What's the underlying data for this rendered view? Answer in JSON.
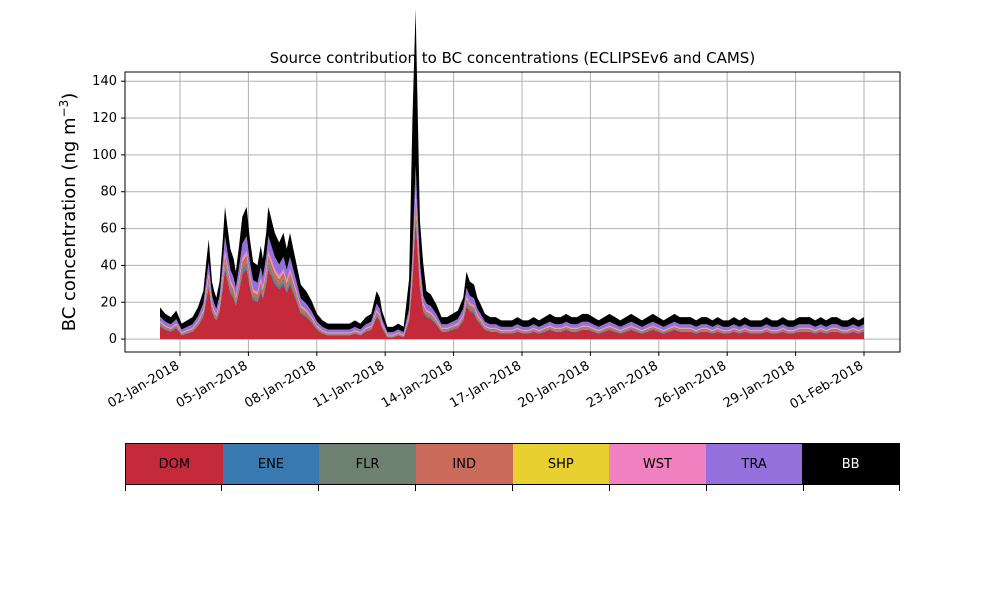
{
  "chart_data": {
    "type": "area",
    "title": "Source contribution to BC concentrations (ECLIPSEv6 and CAMS)",
    "ylabel": "BC concentration (ng m",
    "ylabel_exp": "−3",
    "ylabel_close": ")",
    "ylim": [
      -7,
      145
    ],
    "yticks": [
      0,
      20,
      40,
      60,
      80,
      100,
      120,
      140
    ],
    "xticks": [
      "02-Jan-2018",
      "05-Jan-2018",
      "08-Jan-2018",
      "11-Jan-2018",
      "14-Jan-2018",
      "17-Jan-2018",
      "20-Jan-2018",
      "23-Jan-2018",
      "26-Jan-2018",
      "29-Jan-2018",
      "01-Feb-2018"
    ],
    "grid": true,
    "legend_placement": "colorbar-below",
    "colors": {
      "DOM": "#c42a3a",
      "ENE": "#3a78b0",
      "FLR": "#6e8070",
      "IND": "#c96a5a",
      "SHP": "#e8d030",
      "WST": "#f080c0",
      "TRA": "#9370db",
      "BB": "#000000"
    },
    "categories": [
      "DOM",
      "ENE",
      "FLR",
      "IND",
      "SHP",
      "WST",
      "TRA",
      "BB"
    ],
    "x_start": "2018-01-01 12:00",
    "x_end": "2018-02-01 00:00",
    "series_totals": {
      "DOM": [
        [
          0,
          7
        ],
        [
          0.5,
          5
        ],
        [
          1,
          4
        ],
        [
          1.5,
          6
        ],
        [
          2,
          2
        ],
        [
          2.5,
          3
        ],
        [
          3,
          4
        ],
        [
          3.5,
          7
        ],
        [
          4,
          12
        ],
        [
          4.3,
          22
        ],
        [
          4.5,
          28
        ],
        [
          4.8,
          15
        ],
        [
          5,
          12
        ],
        [
          5.2,
          10
        ],
        [
          5.5,
          15
        ],
        [
          5.8,
          28
        ],
        [
          6,
          38
        ],
        [
          6.3,
          30
        ],
        [
          6.5,
          25
        ],
        [
          6.8,
          22
        ],
        [
          7,
          18
        ],
        [
          7.3,
          26
        ],
        [
          7.6,
          35
        ],
        [
          8,
          38
        ],
        [
          8.3,
          28
        ],
        [
          8.6,
          21
        ],
        [
          9,
          20
        ],
        [
          9.3,
          26
        ],
        [
          9.5,
          22
        ],
        [
          9.8,
          30
        ],
        [
          10,
          38
        ],
        [
          10.3,
          34
        ],
        [
          10.6,
          30
        ],
        [
          11,
          27
        ],
        [
          11.4,
          30
        ],
        [
          11.7,
          25
        ],
        [
          12,
          30
        ],
        [
          12.5,
          22
        ],
        [
          13,
          14
        ],
        [
          13.5,
          12
        ],
        [
          14,
          9
        ],
        [
          14.5,
          5
        ],
        [
          15,
          3
        ],
        [
          15.5,
          2
        ],
        [
          16,
          2
        ],
        [
          16.5,
          2
        ],
        [
          17,
          2
        ],
        [
          17.5,
          2
        ],
        [
          18,
          3
        ],
        [
          18.5,
          2
        ],
        [
          19,
          4
        ],
        [
          19.5,
          5
        ],
        [
          20,
          12
        ],
        [
          20.3,
          10
        ],
        [
          20.5,
          6
        ],
        [
          21,
          1
        ],
        [
          21.5,
          1
        ],
        [
          22,
          2
        ],
        [
          22.5,
          1
        ],
        [
          23,
          10
        ],
        [
          23.3,
          30
        ],
        [
          23.6,
          65
        ],
        [
          24,
          28
        ],
        [
          24.3,
          15
        ],
        [
          24.6,
          12
        ],
        [
          25,
          11
        ],
        [
          25.5,
          8
        ],
        [
          26,
          4
        ],
        [
          26.5,
          4
        ],
        [
          27,
          5
        ],
        [
          27.5,
          6
        ],
        [
          28,
          10
        ],
        [
          28.3,
          18
        ],
        [
          28.6,
          15
        ],
        [
          29,
          14
        ],
        [
          29.3,
          10
        ],
        [
          29.6,
          8
        ],
        [
          30,
          5
        ],
        [
          30.5,
          4
        ],
        [
          31,
          4
        ],
        [
          31.5,
          3
        ],
        [
          32,
          3
        ],
        [
          32.5,
          3
        ],
        [
          33,
          4
        ],
        [
          33.5,
          3
        ],
        [
          34,
          3
        ],
        [
          34.5,
          4
        ],
        [
          35,
          3
        ],
        [
          35.5,
          4
        ],
        [
          36,
          5
        ],
        [
          36.5,
          4
        ],
        [
          37,
          4
        ],
        [
          37.5,
          5
        ],
        [
          38,
          4
        ],
        [
          38.5,
          4
        ],
        [
          39,
          5
        ],
        [
          39.5,
          5
        ],
        [
          40,
          4
        ],
        [
          40.5,
          3
        ],
        [
          41,
          4
        ],
        [
          41.5,
          5
        ],
        [
          42,
          4
        ],
        [
          42.5,
          3
        ],
        [
          43,
          4
        ],
        [
          43.5,
          5
        ],
        [
          44,
          4
        ],
        [
          44.5,
          3
        ],
        [
          45,
          4
        ],
        [
          45.5,
          5
        ],
        [
          46,
          4
        ],
        [
          46.5,
          3
        ],
        [
          47,
          4
        ],
        [
          47.5,
          5
        ],
        [
          48,
          4
        ],
        [
          48.5,
          4
        ],
        [
          49,
          4
        ],
        [
          49.5,
          3
        ],
        [
          50,
          4
        ],
        [
          50.5,
          4
        ],
        [
          51,
          3
        ],
        [
          51.5,
          4
        ],
        [
          52,
          3
        ],
        [
          52.5,
          3
        ],
        [
          53,
          4
        ],
        [
          53.5,
          3
        ],
        [
          54,
          4
        ],
        [
          54.5,
          3
        ],
        [
          55,
          3
        ],
        [
          55.5,
          3
        ],
        [
          56,
          4
        ],
        [
          56.5,
          3
        ],
        [
          57,
          3
        ],
        [
          57.5,
          4
        ],
        [
          58,
          3
        ],
        [
          58.5,
          3
        ],
        [
          59,
          4
        ],
        [
          59.5,
          4
        ],
        [
          60,
          4
        ],
        [
          60.5,
          3
        ],
        [
          61,
          4
        ],
        [
          61.5,
          3
        ],
        [
          62,
          4
        ],
        [
          62.5,
          4
        ],
        [
          63,
          3
        ],
        [
          63.5,
          3
        ],
        [
          64,
          4
        ],
        [
          64.5,
          3
        ],
        [
          65,
          4
        ]
      ]
    }
  },
  "legend_labels": [
    "DOM",
    "ENE",
    "FLR",
    "IND",
    "SHP",
    "WST",
    "TRA",
    "BB"
  ]
}
